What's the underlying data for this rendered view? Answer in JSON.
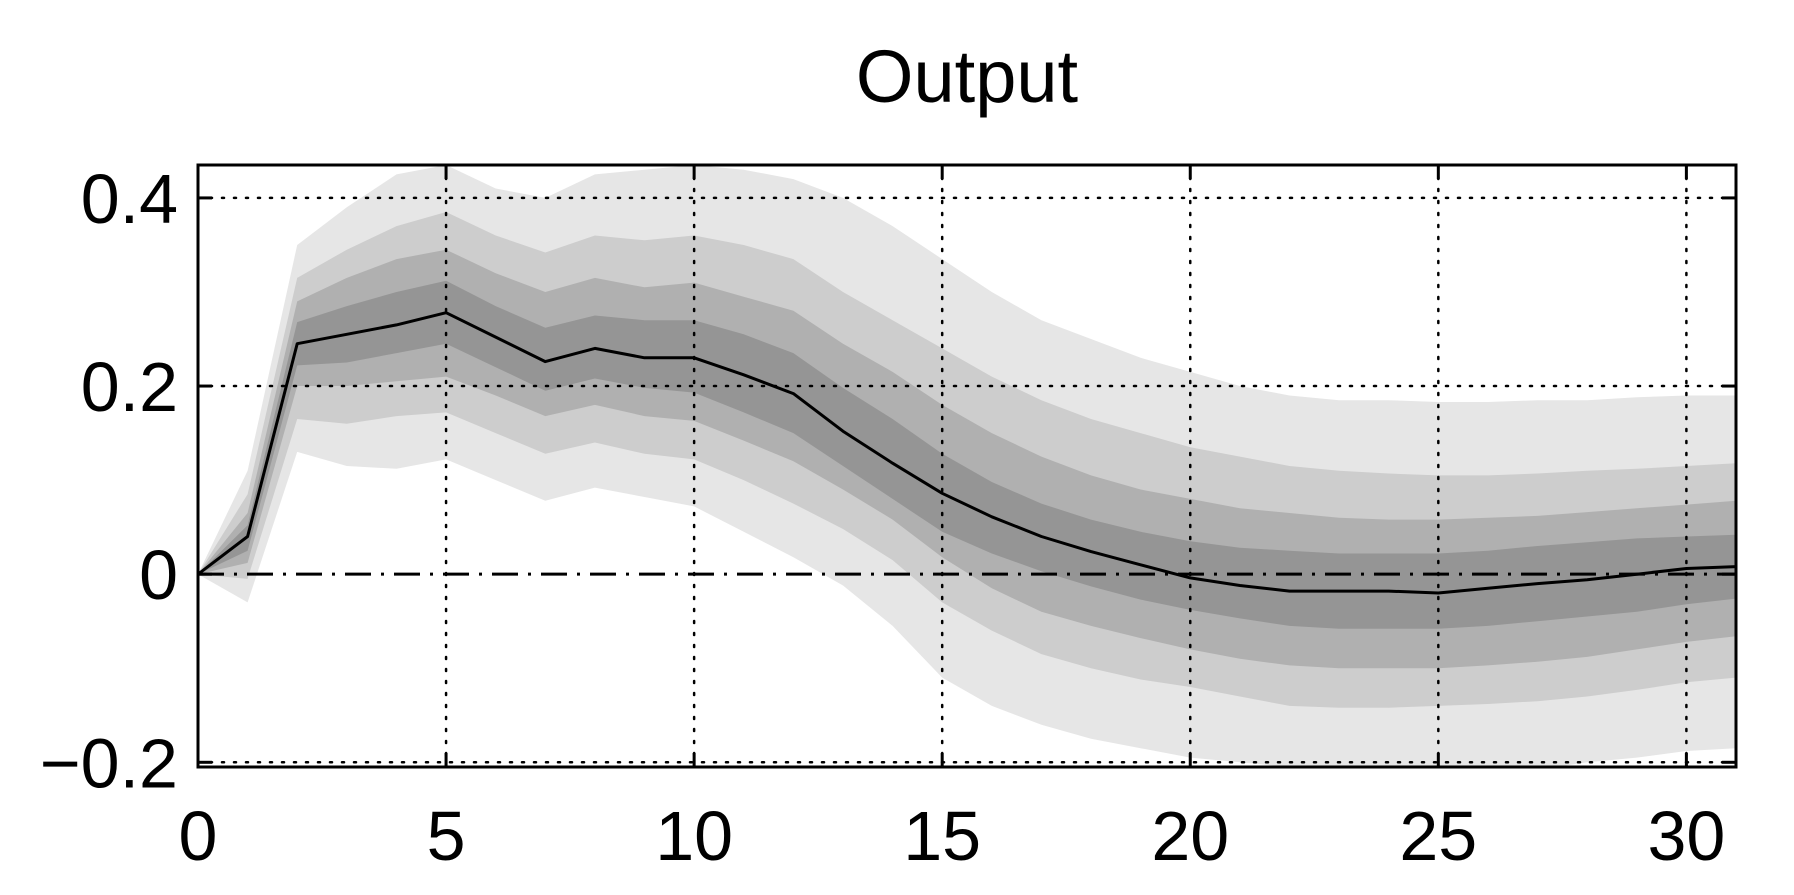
{
  "chart_data": {
    "type": "area",
    "title": "Output",
    "xlabel": "",
    "ylabel": "",
    "xlim": [
      0,
      31
    ],
    "ylim": [
      -0.205,
      0.435
    ],
    "x_ticks": [
      0,
      5,
      10,
      15,
      20,
      25,
      30
    ],
    "x_tick_labels": [
      "0",
      "5",
      "10",
      "15",
      "20",
      "25",
      "30"
    ],
    "y_ticks": [
      -0.2,
      0,
      0.2,
      0.4
    ],
    "y_tick_labels": [
      "−0.2",
      "0",
      "0.2",
      "0.4"
    ],
    "grid": true,
    "reference_line": 0,
    "x": [
      0,
      1,
      2,
      3,
      4,
      5,
      6,
      7,
      8,
      9,
      10,
      11,
      12,
      13,
      14,
      15,
      16,
      17,
      18,
      19,
      20,
      21,
      22,
      23,
      24,
      25,
      26,
      27,
      28,
      29,
      30,
      31
    ],
    "median": [
      0,
      0.04,
      0.245,
      0.255,
      0.265,
      0.278,
      0.252,
      0.226,
      0.24,
      0.23,
      0.23,
      0.212,
      0.192,
      0.152,
      0.118,
      0.086,
      0.061,
      0.04,
      0.024,
      0.01,
      -0.004,
      -0.012,
      -0.018,
      -0.018,
      -0.018,
      -0.02,
      -0.015,
      -0.01,
      -0.006,
      0,
      0.006,
      0.008
    ],
    "bands": [
      {
        "level": "outer",
        "color": "#e6e6e6",
        "upper": [
          0,
          0.11,
          0.35,
          0.39,
          0.425,
          0.435,
          0.41,
          0.4,
          0.425,
          0.43,
          0.435,
          0.43,
          0.42,
          0.4,
          0.37,
          0.335,
          0.3,
          0.27,
          0.25,
          0.23,
          0.215,
          0.2,
          0.19,
          0.185,
          0.185,
          0.183,
          0.183,
          0.185,
          0.185,
          0.188,
          0.19,
          0.19
        ],
        "lower": [
          0,
          -0.03,
          0.13,
          0.115,
          0.112,
          0.122,
          0.1,
          0.078,
          0.092,
          0.082,
          0.072,
          0.045,
          0.018,
          -0.012,
          -0.055,
          -0.11,
          -0.14,
          -0.16,
          -0.175,
          -0.185,
          -0.195,
          -0.2,
          -0.205,
          -0.21,
          -0.212,
          -0.213,
          -0.211,
          -0.208,
          -0.2,
          -0.195,
          -0.188,
          -0.185
        ]
      },
      {
        "level": "mid-outer",
        "color": "#cdcdcd",
        "upper": [
          0,
          0.085,
          0.315,
          0.345,
          0.37,
          0.385,
          0.36,
          0.342,
          0.36,
          0.355,
          0.36,
          0.35,
          0.335,
          0.3,
          0.27,
          0.24,
          0.21,
          0.185,
          0.165,
          0.15,
          0.135,
          0.125,
          0.115,
          0.11,
          0.107,
          0.105,
          0.105,
          0.107,
          0.11,
          0.112,
          0.115,
          0.118
        ],
        "lower": [
          0,
          -0.005,
          0.165,
          0.16,
          0.168,
          0.172,
          0.15,
          0.128,
          0.14,
          0.128,
          0.122,
          0.1,
          0.075,
          0.048,
          0.015,
          -0.03,
          -0.06,
          -0.085,
          -0.1,
          -0.112,
          -0.12,
          -0.13,
          -0.14,
          -0.142,
          -0.142,
          -0.14,
          -0.138,
          -0.135,
          -0.13,
          -0.123,
          -0.115,
          -0.11
        ]
      },
      {
        "level": "mid-inner",
        "color": "#b0b0b0",
        "upper": [
          0,
          0.065,
          0.29,
          0.315,
          0.335,
          0.345,
          0.32,
          0.3,
          0.315,
          0.305,
          0.31,
          0.295,
          0.28,
          0.245,
          0.215,
          0.18,
          0.15,
          0.125,
          0.105,
          0.09,
          0.08,
          0.07,
          0.065,
          0.06,
          0.058,
          0.058,
          0.06,
          0.062,
          0.066,
          0.07,
          0.074,
          0.078
        ],
        "lower": [
          0,
          0.012,
          0.2,
          0.2,
          0.205,
          0.21,
          0.19,
          0.168,
          0.18,
          0.168,
          0.163,
          0.142,
          0.12,
          0.09,
          0.058,
          0.018,
          -0.015,
          -0.04,
          -0.055,
          -0.068,
          -0.08,
          -0.09,
          -0.097,
          -0.1,
          -0.1,
          -0.1,
          -0.097,
          -0.093,
          -0.088,
          -0.08,
          -0.072,
          -0.066
        ]
      },
      {
        "level": "inner",
        "color": "#959595",
        "upper": [
          0,
          0.052,
          0.268,
          0.285,
          0.3,
          0.312,
          0.285,
          0.262,
          0.275,
          0.27,
          0.27,
          0.255,
          0.235,
          0.198,
          0.165,
          0.128,
          0.098,
          0.075,
          0.058,
          0.045,
          0.035,
          0.028,
          0.025,
          0.022,
          0.022,
          0.022,
          0.025,
          0.03,
          0.034,
          0.038,
          0.04,
          0.042
        ],
        "lower": [
          0,
          0.025,
          0.222,
          0.225,
          0.235,
          0.245,
          0.22,
          0.195,
          0.208,
          0.198,
          0.193,
          0.172,
          0.15,
          0.115,
          0.08,
          0.045,
          0.022,
          0.003,
          -0.013,
          -0.027,
          -0.038,
          -0.047,
          -0.055,
          -0.058,
          -0.058,
          -0.058,
          -0.055,
          -0.05,
          -0.045,
          -0.04,
          -0.032,
          -0.026
        ]
      }
    ]
  }
}
